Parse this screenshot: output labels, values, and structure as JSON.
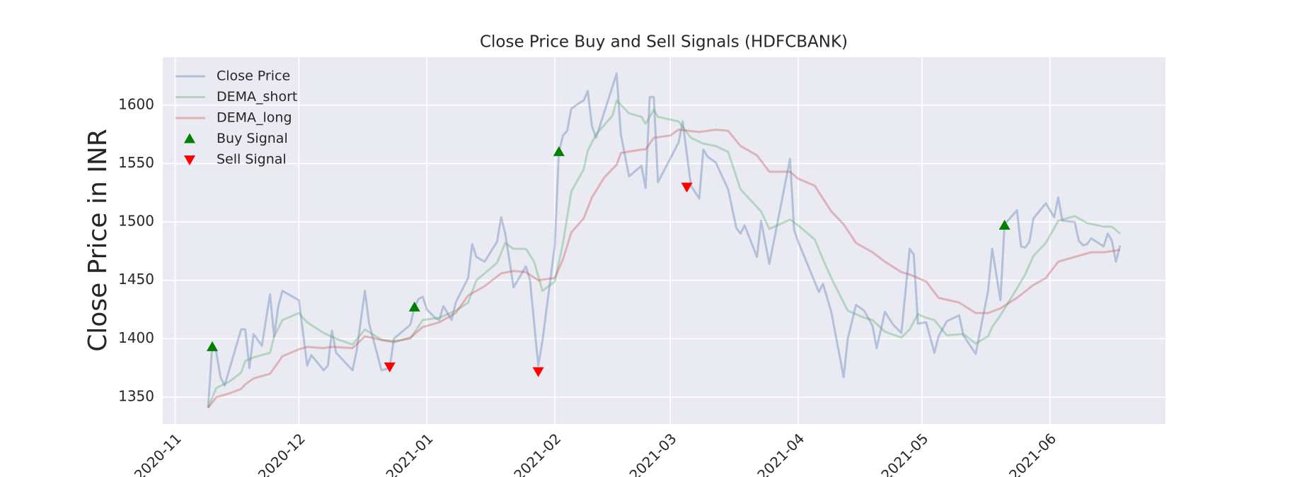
{
  "chart_data": {
    "type": "line",
    "title": "Close Price Buy and Sell Signals (HDFCBANK)",
    "ylabel": "Close Price in INR",
    "xlim": [
      -3,
      240
    ],
    "ylim": [
      1327,
      1641
    ],
    "xticks": [
      {
        "value": 0,
        "label": "2020-11"
      },
      {
        "value": 30,
        "label": "2020-12"
      },
      {
        "value": 61,
        "label": "2021-01"
      },
      {
        "value": 92,
        "label": "2021-02"
      },
      {
        "value": 120,
        "label": "2021-03"
      },
      {
        "value": 151,
        "label": "2021-04"
      },
      {
        "value": 181,
        "label": "2021-05"
      },
      {
        "value": 212,
        "label": "2021-06"
      }
    ],
    "yticks": [
      1350,
      1400,
      1450,
      1500,
      1550,
      1600
    ],
    "grid": true,
    "legend": "upper left",
    "series": [
      {
        "name": "Close Price",
        "color": "#4c72b0",
        "alpha": 0.35,
        "x": [
          8,
          9,
          10,
          11,
          12,
          13,
          16,
          17,
          18,
          19,
          21,
          23,
          24,
          25,
          26,
          30,
          32,
          33,
          36,
          37,
          38,
          39,
          43,
          44,
          46,
          47,
          50,
          52,
          53,
          57,
          58,
          59,
          60,
          61,
          63,
          64,
          65,
          67,
          68,
          71,
          72,
          73,
          75,
          78,
          79,
          80,
          82,
          85,
          86,
          88,
          89,
          92,
          93,
          94,
          95,
          96,
          98,
          99,
          100,
          101,
          102,
          107,
          108,
          110,
          113,
          114,
          115,
          116,
          117,
          122,
          123,
          125,
          127,
          128,
          129,
          131,
          134,
          136,
          137,
          138,
          141,
          142,
          144,
          149,
          150,
          151,
          156,
          157,
          159,
          162,
          163,
          165,
          167,
          169,
          170,
          172,
          174,
          176,
          178,
          179,
          180,
          182,
          184,
          185,
          187,
          190,
          191,
          194,
          197,
          198,
          200,
          201,
          204,
          205,
          206,
          207,
          208,
          211,
          213,
          214,
          215,
          218,
          219,
          220,
          221,
          222,
          225,
          226,
          227,
          228,
          229
        ],
        "values": [
          1341,
          1395,
          1388,
          1367,
          1360,
          1372,
          1408,
          1408,
          1375,
          1404,
          1394,
          1438,
          1402,
          1428,
          1441,
          1433,
          1377,
          1386,
          1373,
          1377,
          1407,
          1388,
          1373,
          1390,
          1441,
          1413,
          1373,
          1375,
          1400,
          1412,
          1427,
          1434,
          1436,
          1425,
          1418,
          1416,
          1428,
          1416,
          1431,
          1452,
          1481,
          1470,
          1466,
          1483,
          1504,
          1490,
          1444,
          1462,
          1450,
          1377,
          1398,
          1480,
          1560,
          1574,
          1578,
          1597,
          1602,
          1604,
          1612,
          1582,
          1572,
          1627,
          1575,
          1539,
          1548,
          1529,
          1607,
          1607,
          1534,
          1568,
          1586,
          1531,
          1520,
          1562,
          1556,
          1551,
          1528,
          1495,
          1490,
          1497,
          1470,
          1501,
          1464,
          1554,
          1493,
          1483,
          1440,
          1447,
          1423,
          1367,
          1400,
          1429,
          1424,
          1411,
          1392,
          1423,
          1412,
          1405,
          1477,
          1472,
          1413,
          1414,
          1388,
          1402,
          1415,
          1420,
          1403,
          1387,
          1441,
          1477,
          1433,
          1498,
          1510,
          1479,
          1478,
          1483,
          1503,
          1516,
          1504,
          1521,
          1501,
          1500,
          1484,
          1480,
          1481,
          1486,
          1479,
          1490,
          1484,
          1466,
          1480
        ]
      },
      {
        "name": "DEMA_short",
        "color": "#55a868",
        "alpha": 0.35,
        "x": [
          8,
          10,
          13,
          16,
          17,
          19,
          23,
          24,
          26,
          30,
          32,
          36,
          39,
          43,
          46,
          50,
          53,
          57,
          60,
          64,
          68,
          71,
          73,
          78,
          80,
          82,
          85,
          87,
          89,
          92,
          94,
          96,
          99,
          100,
          102,
          106,
          107,
          110,
          113,
          114,
          116,
          117,
          122,
          125,
          128,
          131,
          134,
          137,
          142,
          144,
          149,
          151,
          155,
          157,
          159,
          163,
          167,
          169,
          172,
          176,
          178,
          180,
          182,
          184,
          187,
          191,
          194,
          197,
          198,
          200,
          204,
          206,
          208,
          211,
          214,
          218,
          221,
          225,
          227,
          229
        ],
        "values": [
          1341,
          1358,
          1363,
          1371,
          1381,
          1384,
          1388,
          1402,
          1416,
          1422,
          1414,
          1405,
          1400,
          1395,
          1408,
          1399,
          1398,
          1400,
          1416,
          1418,
          1424,
          1431,
          1450,
          1465,
          1482,
          1477,
          1477,
          1466,
          1441,
          1449,
          1482,
          1526,
          1545,
          1561,
          1575,
          1591,
          1604,
          1593,
          1590,
          1584,
          1596,
          1590,
          1586,
          1572,
          1567,
          1565,
          1560,
          1528,
          1509,
          1494,
          1502,
          1497,
          1485,
          1468,
          1452,
          1424,
          1418,
          1416,
          1406,
          1401,
          1408,
          1421,
          1418,
          1416,
          1403,
          1404,
          1396,
          1402,
          1410,
          1420,
          1443,
          1455,
          1471,
          1482,
          1501,
          1505,
          1499,
          1496,
          1496,
          1490
        ]
      },
      {
        "name": "DEMA_long",
        "color": "#c44e52",
        "alpha": 0.35,
        "x": [
          8,
          10,
          13,
          16,
          17,
          19,
          23,
          26,
          30,
          32,
          36,
          38,
          43,
          46,
          50,
          53,
          57,
          60,
          64,
          68,
          71,
          75,
          79,
          82,
          85,
          88,
          92,
          94,
          96,
          99,
          101,
          104,
          107,
          108,
          113,
          114,
          116,
          120,
          122,
          127,
          131,
          134,
          137,
          141,
          144,
          149,
          151,
          155,
          159,
          162,
          165,
          169,
          172,
          176,
          178,
          180,
          182,
          185,
          190,
          194,
          197,
          200,
          204,
          208,
          211,
          214,
          218,
          222,
          225,
          229
        ],
        "values": [
          1341,
          1350,
          1353,
          1357,
          1361,
          1366,
          1370,
          1385,
          1391,
          1393,
          1392,
          1393,
          1392,
          1402,
          1399,
          1397,
          1401,
          1410,
          1414,
          1422,
          1437,
          1445,
          1456,
          1458,
          1457,
          1450,
          1452,
          1468,
          1491,
          1503,
          1521,
          1538,
          1549,
          1559,
          1562,
          1562,
          1572,
          1574,
          1579,
          1577,
          1579,
          1578,
          1565,
          1557,
          1543,
          1543,
          1537,
          1531,
          1509,
          1498,
          1482,
          1474,
          1466,
          1457,
          1455,
          1452,
          1449,
          1435,
          1431,
          1422,
          1422,
          1426,
          1435,
          1446,
          1452,
          1466,
          1470,
          1474,
          1474,
          1476
        ]
      },
      {
        "name": "Buy Signal",
        "color": "#008000",
        "marker": "^",
        "x": [
          9,
          58,
          93,
          201
        ],
        "values": [
          1393,
          1427,
          1560,
          1497
        ]
      },
      {
        "name": "Sell Signal",
        "color": "#ff0000",
        "marker": "v",
        "x": [
          52,
          88,
          124
        ],
        "values": [
          1376,
          1372,
          1530
        ]
      }
    ]
  }
}
